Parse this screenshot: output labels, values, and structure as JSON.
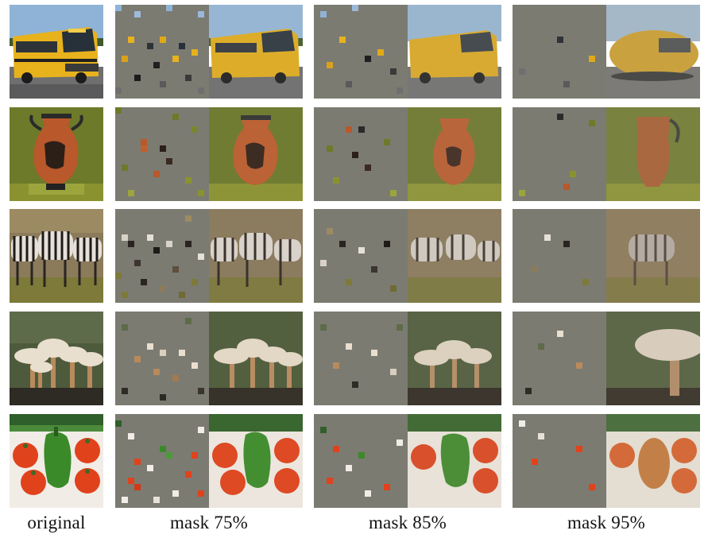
{
  "figure": {
    "columns": [
      {
        "label": "original"
      },
      {
        "label": "mask 75%"
      },
      {
        "label": "mask 85%"
      },
      {
        "label": "mask 95%"
      }
    ],
    "rows": [
      {
        "subject": "school-bus"
      },
      {
        "subject": "greek-vase"
      },
      {
        "subject": "zebras"
      },
      {
        "subject": "mushrooms"
      },
      {
        "subject": "vegetables"
      }
    ],
    "mask_ratios": [
      0.75,
      0.85,
      0.95
    ],
    "mask_color": "#7b7b72"
  }
}
